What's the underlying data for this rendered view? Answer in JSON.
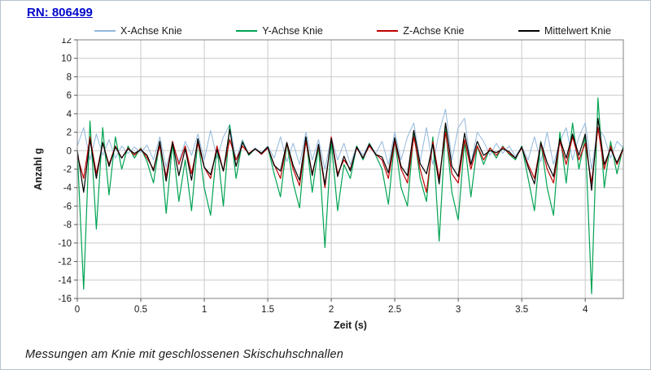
{
  "header": {
    "title": "RN: 806499"
  },
  "caption": "Messungen am Knie mit geschlossenen  Skischuhschnallen",
  "chart_data": {
    "type": "line",
    "title": "",
    "xlabel": "Zeit (s)",
    "ylabel": "Anzahl g",
    "xlim": [
      0,
      4.3
    ],
    "ylim": [
      -16,
      12
    ],
    "ytick_step": 2,
    "xticks": [
      0,
      0.5,
      1,
      1.5,
      2,
      2.5,
      3,
      3.5,
      4
    ],
    "grid": true,
    "legend_position": "top",
    "x_start": 0,
    "x_step": 0.05,
    "series": [
      {
        "name": "X-Achse Knie",
        "color": "#92b8dd",
        "values": [
          0.5,
          2.5,
          -1,
          1.8,
          -0.5,
          1.2,
          -0.8,
          0.5,
          -0.3,
          0.4,
          -0.2,
          0.6,
          -1,
          1.5,
          -1.8,
          0.8,
          -1.2,
          1,
          -0.5,
          1.8,
          -1,
          2.2,
          -0.8,
          1.5,
          2.8,
          -1,
          1.2,
          -0.4,
          0.3,
          -0.2,
          0.5,
          -0.8,
          1.5,
          -1.2,
          0.8,
          -1.5,
          2,
          -1,
          1.2,
          -2,
          1.5,
          -1,
          0.8,
          -1.5,
          0.5,
          -0.5,
          0.8,
          -0.3,
          1,
          -1.5,
          2,
          -1,
          1.5,
          3,
          -1.2,
          2.5,
          -1.5,
          2,
          4.5,
          -1,
          2.5,
          3.5,
          -1.5,
          2,
          1,
          -0.5,
          0.8,
          -0.3,
          0.5,
          -0.6,
          0.4,
          -1,
          1.5,
          -1.2,
          2,
          -1.5,
          1,
          2.5,
          -1,
          1.5,
          3,
          -2,
          2.5,
          1.5,
          -0.8,
          1,
          0.3
        ]
      },
      {
        "name": "Y-Achse Knie",
        "color": "#00a352",
        "values": [
          0,
          -15,
          3.2,
          -8.5,
          2.5,
          -4.8,
          1.5,
          -2,
          0.5,
          -0.8,
          0.3,
          -1.2,
          -3.5,
          1,
          -6.8,
          0.8,
          -5.5,
          -1,
          -6.5,
          1.2,
          -4,
          -7,
          0.5,
          -6,
          2.8,
          -3,
          1,
          -0.5,
          0.2,
          -0.3,
          0.4,
          -2.5,
          -5,
          0.8,
          -3.5,
          -6.2,
          1.5,
          -4.5,
          0.5,
          -10.5,
          1,
          -6.5,
          -1.5,
          -3,
          0.5,
          -1,
          0.8,
          -0.5,
          -2,
          -5.8,
          1.2,
          -4,
          -6,
          2,
          -3,
          -5.5,
          1.5,
          -9.8,
          2.5,
          -4.5,
          -7.5,
          1,
          -5,
          0.5,
          -1.5,
          0.3,
          -0.8,
          0.5,
          -0.4,
          -1,
          0.5,
          -3,
          -6.5,
          1,
          -4,
          -7,
          2,
          -3.5,
          3,
          -2,
          1.5,
          -15.5,
          5.7,
          -4,
          1,
          -2.5,
          0.5
        ]
      },
      {
        "name": "Z-Achse Knie",
        "color": "#c00000",
        "values": [
          -0.5,
          -3,
          1.5,
          -2.5,
          0.8,
          -1.5,
          0.5,
          -0.8,
          0.3,
          -0.5,
          0.2,
          -0.8,
          -2,
          0.5,
          -2.8,
          1,
          -1.5,
          0.5,
          -2.5,
          0.8,
          -1.8,
          -3,
          0.5,
          -2.2,
          1.2,
          -1,
          0.5,
          -0.3,
          0.2,
          -0.4,
          0.3,
          -1.5,
          -3,
          0.8,
          -2,
          -3.8,
          1,
          -2.5,
          0.5,
          -4,
          1.5,
          -2.5,
          -1,
          -2,
          0.3,
          -0.8,
          0.5,
          -0.4,
          -1,
          -3,
          1,
          -2,
          -3.5,
          1.5,
          -2,
          -4.5,
          1,
          -3,
          2,
          -2.5,
          -3.5,
          1.2,
          -2,
          0.5,
          -1,
          0.3,
          -0.5,
          0.4,
          -0.3,
          -0.8,
          0.3,
          -1.5,
          -3,
          0.8,
          -2,
          -3.5,
          1,
          -1.5,
          1.5,
          -1,
          0.8,
          -3.5,
          2.5,
          -2,
          0.5,
          -1.5,
          0.2
        ]
      },
      {
        "name": "Mittelwert Knie",
        "color": "#000000",
        "values": [
          0,
          -4.5,
          1.2,
          -3,
          0.9,
          -1.7,
          0.4,
          -0.8,
          0.2,
          -0.3,
          0.1,
          -0.5,
          -2.2,
          1,
          -3.3,
          0.9,
          -2.7,
          0.2,
          -3.2,
          1.3,
          -1.8,
          -2.6,
          0.1,
          -2.2,
          2.3,
          -1.7,
          0.9,
          -0.4,
          0.2,
          -0.3,
          0.4,
          -1.6,
          -2.2,
          0.9,
          -1.6,
          -3.2,
          1.5,
          -2.7,
          0.7,
          -3.7,
          1.3,
          -2.8,
          -0.6,
          -2.2,
          0.4,
          -0.8,
          0.7,
          -0.4,
          -0.7,
          -2.4,
          1.4,
          -1.7,
          -2.7,
          2.2,
          -1.4,
          -2.5,
          0.7,
          -3.6,
          3,
          -1.7,
          -2.8,
          1.9,
          -1.5,
          1,
          -0.5,
          0,
          -0.2,
          0.2,
          -0.1,
          -0.8,
          0.4,
          -1.8,
          -3.6,
          0.9,
          -1.3,
          -2.8,
          1.3,
          -0.8,
          1.8,
          -0.5,
          1.8,
          -4.3,
          3.5,
          -1.5,
          0.2,
          -1.3,
          0.3
        ]
      }
    ]
  }
}
